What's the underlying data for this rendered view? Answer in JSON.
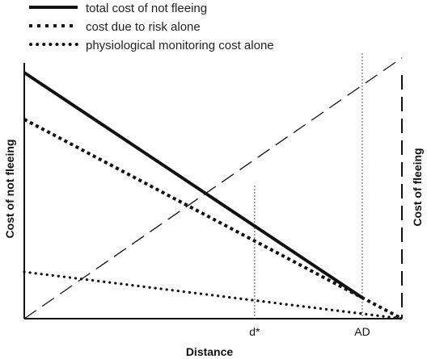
{
  "chart_data": {
    "type": "line",
    "legend": {
      "placement": "top-left",
      "entries": [
        {
          "label": "total cost of not fleeing",
          "style": "solid-thick"
        },
        {
          "label": "cost due to risk alone",
          "style": "square-dots"
        },
        {
          "label": "physiological monitoring cost alone",
          "style": "round-dots"
        }
      ]
    },
    "xlabel": "Distance",
    "ylabel_left": "Cost of not fleeing",
    "ylabel_right": "Cost of fleeing",
    "x_ticks": [
      {
        "label": "d*",
        "x": 0.61
      },
      {
        "label": "AD",
        "x": 0.895
      }
    ],
    "xlim": [
      0,
      1
    ],
    "ylim": [
      0,
      1
    ],
    "series": [
      {
        "name": "total cost of not fleeing",
        "style": "solid-thick",
        "x": [
          0,
          0.895
        ],
        "y": [
          1.0,
          0.085
        ]
      },
      {
        "name": "cost due to risk alone",
        "style": "square-dots",
        "x": [
          0,
          1.0
        ],
        "y": [
          0.81,
          0.0
        ]
      },
      {
        "name": "physiological monitoring cost alone",
        "style": "round-dots",
        "x": [
          0,
          1.0
        ],
        "y": [
          0.19,
          0.0
        ]
      },
      {
        "name": "cost of fleeing",
        "style": "dashed",
        "x": [
          0,
          1.0
        ],
        "y": [
          0.0,
          1.06
        ]
      }
    ]
  }
}
